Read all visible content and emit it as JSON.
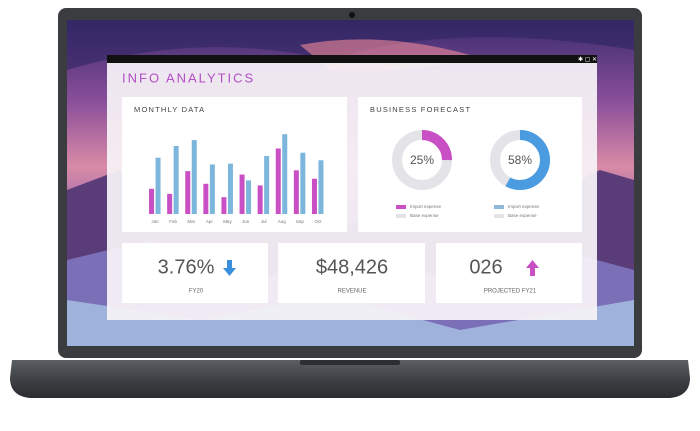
{
  "dashboard": {
    "title": "INFO ANALYTICS",
    "monthly_data": {
      "type": "bar",
      "title": "MONTHLY DATA",
      "categories": [
        "Jan",
        "Feb",
        "Mar",
        "Apr",
        "May",
        "Jun",
        "Jul",
        "Aug",
        "Sep",
        "Oct"
      ],
      "ylim": [
        0,
        100
      ],
      "series": [
        {
          "color": "#c94fc4",
          "values": [
            30,
            24,
            51,
            36,
            20,
            47,
            34,
            78,
            52,
            42
          ]
        },
        {
          "color": "#7db6dc",
          "values": [
            67,
            81,
            88,
            59,
            60,
            40,
            69,
            95,
            73,
            64
          ]
        }
      ]
    },
    "business_forecast": {
      "title": "BUSINESS FORECAST",
      "donuts": [
        {
          "type": "pie",
          "value": {
            "value": 25,
            "label": "25%"
          },
          "color": "#c94fc4",
          "base_color": "#e4e4e8",
          "legend": [
            {
              "name": "Import expense",
              "color": "#c94fc4"
            },
            {
              "name": "Base expense",
              "color": "#e4e4e8"
            }
          ]
        },
        {
          "type": "pie",
          "value": {
            "value": 58,
            "label": "58%"
          },
          "color": "#4a9be0",
          "base_color": "#e4e4e8",
          "legend": [
            {
              "name": "Import expense",
              "color": "#8fb9d6"
            },
            {
              "name": "Base expense",
              "color": "#e4e4e8"
            }
          ]
        }
      ]
    },
    "kpis": [
      {
        "value": "3.76%",
        "label": "FY20"
      },
      {
        "value": "$48,426",
        "label": "REVENUE"
      },
      {
        "value": "026",
        "label": "PROJECTED FY21"
      }
    ]
  }
}
